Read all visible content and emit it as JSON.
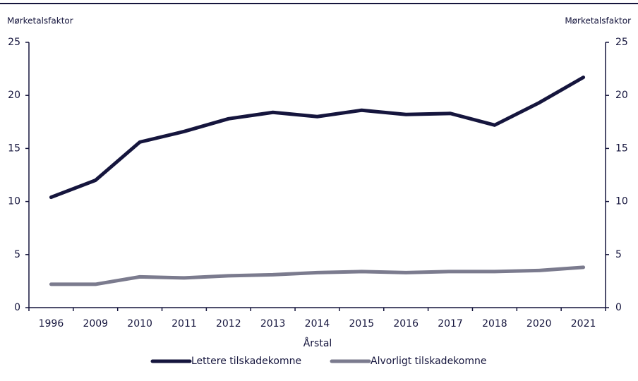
{
  "chart_data": {
    "type": "line",
    "y_label": "Mørketalsfaktor",
    "y2_label": "Mørketalsfaktor",
    "x_label": "Årstal",
    "categories": [
      "1996",
      "2009",
      "2010",
      "2011",
      "2012",
      "2013",
      "2014",
      "2015",
      "2016",
      "2017",
      "2018",
      "2020",
      "2021"
    ],
    "series": [
      {
        "name": "Lettere tilskadekomne",
        "color": "#15153d",
        "values": [
          10.4,
          12.0,
          15.6,
          16.6,
          17.8,
          18.4,
          18.0,
          18.6,
          18.2,
          18.3,
          17.2,
          19.3,
          21.7
        ]
      },
      {
        "name": "Alvorligt tilskadekomne",
        "color": "#7b7b8e",
        "values": [
          2.2,
          2.2,
          2.9,
          2.8,
          3.0,
          3.1,
          3.3,
          3.4,
          3.3,
          3.4,
          3.4,
          3.5,
          3.8
        ]
      }
    ],
    "ylim": [
      0,
      25
    ],
    "yticks": [
      0,
      5,
      10,
      15,
      20,
      25
    ],
    "y2lim": [
      0,
      25
    ],
    "y2ticks": [
      0,
      5,
      10,
      15,
      20,
      25
    ],
    "grid": false,
    "legend": "bottom"
  }
}
